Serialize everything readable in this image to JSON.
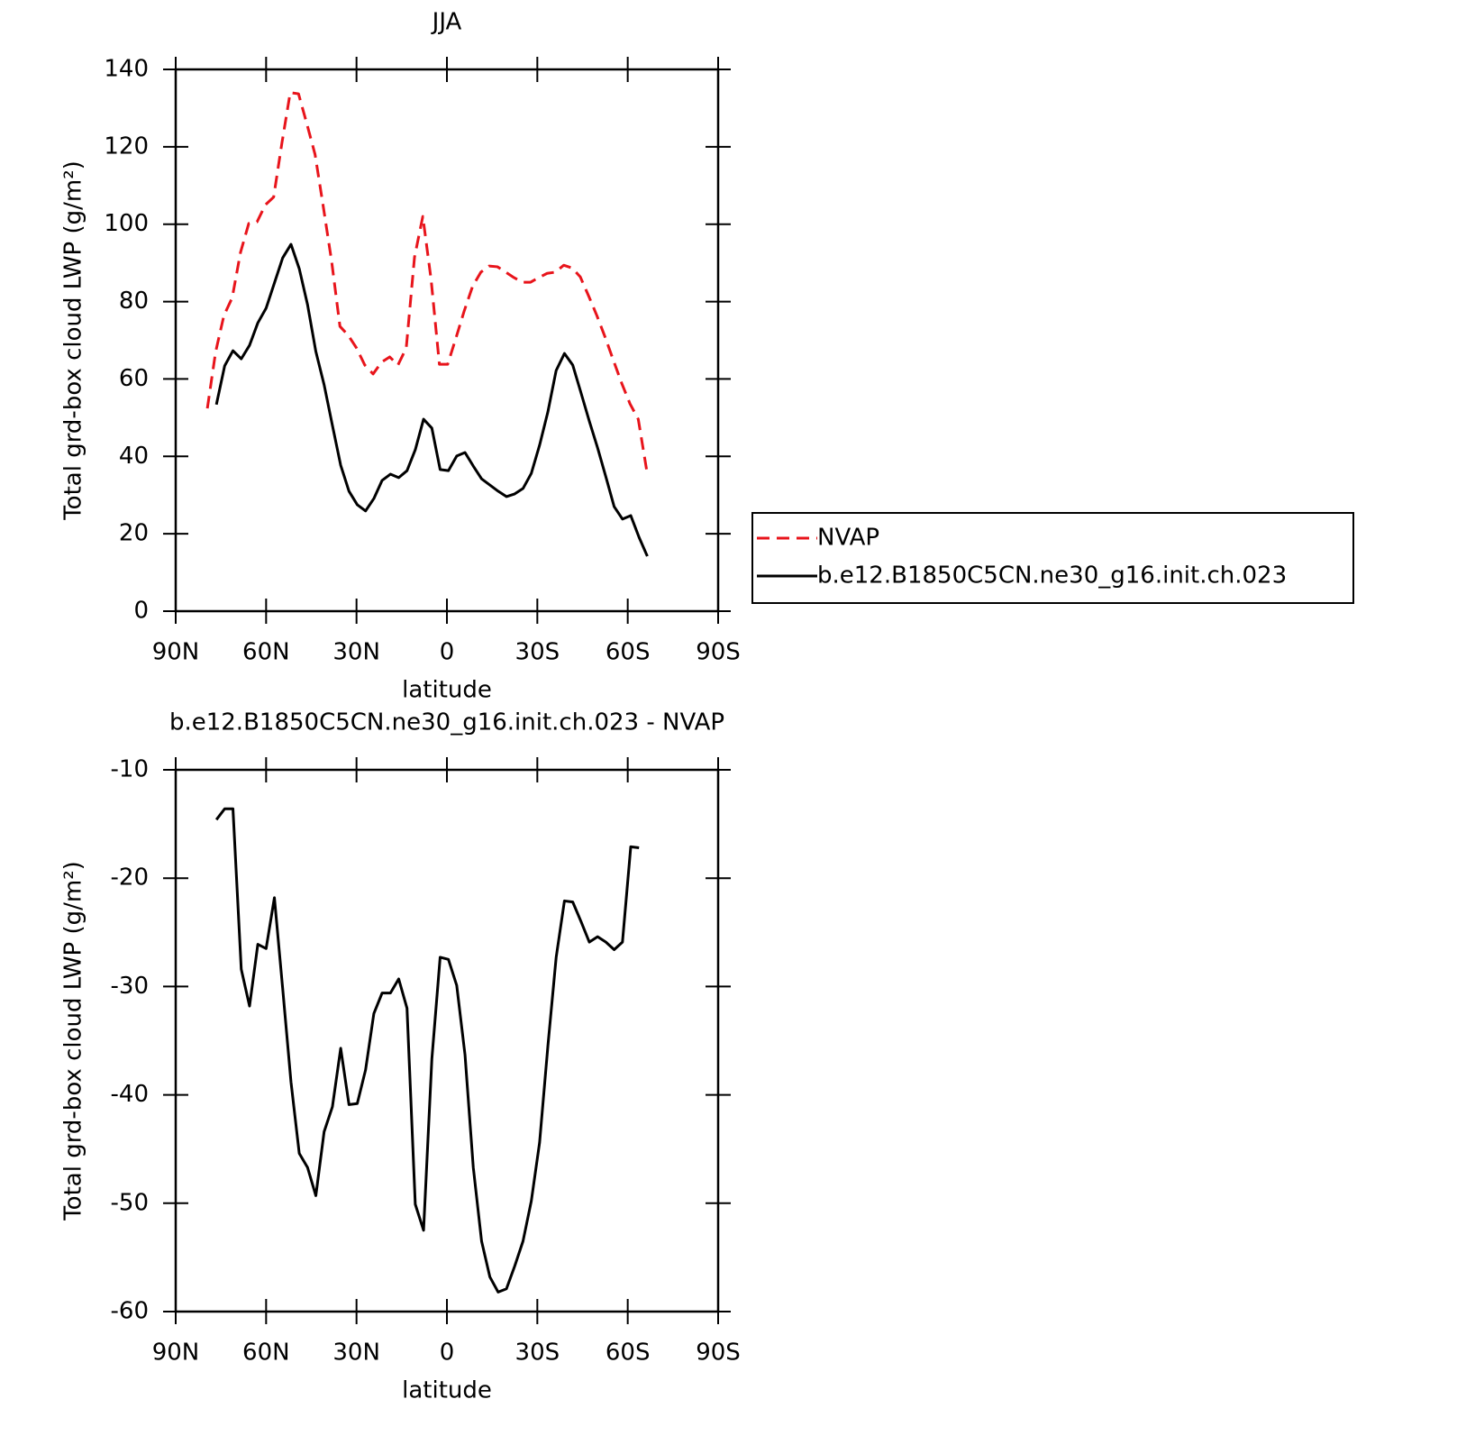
{
  "chart_data": [
    {
      "type": "line",
      "title": "JJA",
      "xlabel": "latitude",
      "ylabel": "Total grd-box cloud LWP (g/m²)",
      "xlim": [
        90,
        -90
      ],
      "xticks": [
        {
          "value": 90,
          "label": "90N"
        },
        {
          "value": 60,
          "label": "60N"
        },
        {
          "value": 30,
          "label": "30N"
        },
        0,
        {
          "value": -30,
          "label": "30S"
        },
        {
          "value": -60,
          "label": "60S"
        },
        {
          "value": -90,
          "label": "90S"
        }
      ],
      "ylim": [
        0,
        140
      ],
      "yticks": [
        0,
        20,
        40,
        60,
        80,
        100,
        120,
        140
      ],
      "legend": "right",
      "series": [
        {
          "name": "NVAP",
          "color": "#e8141b",
          "linestyle": "dashed",
          "x": [
            79.5,
            76.75,
            74,
            71.25,
            68.5,
            65.75,
            63,
            60.25,
            57.5,
            54.75,
            52,
            49.25,
            46.5,
            43.75,
            41,
            38.25,
            35.5,
            32.75,
            30,
            27.25,
            24.5,
            21.75,
            19,
            16.25,
            13.5,
            10.75,
            8,
            5.25,
            2.5,
            -0.25,
            -3,
            -5.75,
            -8.5,
            -11.25,
            -14,
            -16.75,
            -19.5,
            -22.25,
            -25,
            -27.75,
            -30.5,
            -33.25,
            -36,
            -38.75,
            -41.5,
            -44.25,
            -47,
            -49.75,
            -52.5,
            -55.25,
            -58,
            -60.75,
            -63.5,
            -66.25
          ],
          "values": [
            52.4,
            67,
            76.4,
            81,
            92.7,
            100.2,
            100.6,
            105,
            107,
            121,
            134,
            133.7,
            126,
            118,
            104.4,
            90.4,
            73.6,
            71.3,
            68,
            63.6,
            61.3,
            64.3,
            65.7,
            63.6,
            68,
            91.5,
            102,
            85.7,
            63.8,
            63.8,
            70.6,
            77.6,
            83.9,
            87.6,
            89.2,
            89,
            87.6,
            86.2,
            85,
            85,
            86.2,
            87.3,
            87.6,
            89.4,
            88.7,
            86.4,
            81.5,
            76.4,
            70.8,
            64.8,
            58.9,
            53.6,
            49.6,
            36.6
          ]
        },
        {
          "name": "b.e12.B1850C5CN.ne30_g16.init.ch.023",
          "color": "#000000",
          "linestyle": "solid",
          "x": [
            76.5,
            73.75,
            71,
            68.25,
            65.5,
            62.75,
            60,
            57.25,
            54.5,
            51.75,
            49,
            46.25,
            43.5,
            40.75,
            38,
            35.25,
            32.5,
            29.75,
            27,
            24.25,
            21.5,
            18.75,
            16,
            13.25,
            10.5,
            7.75,
            5,
            2.25,
            -0.5,
            -3.25,
            -6,
            -8.75,
            -11.5,
            -14.25,
            -17,
            -19.75,
            -22.5,
            -25.25,
            -28,
            -30.75,
            -33.5,
            -36.25,
            -39,
            -41.75,
            -44.5,
            -47.25,
            -50,
            -52.75,
            -55.5,
            -58.25,
            -61,
            -63.75,
            -66.5
          ],
          "values": [
            53.4,
            63.4,
            67.3,
            65.2,
            68.7,
            74.5,
            78.3,
            84.8,
            91.3,
            94.8,
            88.5,
            79.2,
            67.1,
            58.5,
            48,
            37.7,
            31,
            27.5,
            25.9,
            29.1,
            33.8,
            35.4,
            34.5,
            36.3,
            41.7,
            49.6,
            47.3,
            36.6,
            36.3,
            40.1,
            41,
            37.5,
            34.2,
            32.6,
            31,
            29.6,
            30.3,
            31.7,
            35.6,
            42.9,
            51.5,
            62.2,
            66.6,
            63.6,
            56.4,
            49.1,
            42.2,
            34.7,
            27,
            23.8,
            24.7,
            19.1,
            14.2
          ]
        }
      ]
    },
    {
      "type": "line",
      "title": "b.e12.B1850C5CN.ne30_g16.init.ch.023 - NVAP",
      "xlabel": "latitude",
      "ylabel": "Total grd-box cloud LWP (g/m²)",
      "xlim": [
        90,
        -90
      ],
      "xticks": [
        {
          "value": 90,
          "label": "90N"
        },
        {
          "value": 60,
          "label": "60N"
        },
        {
          "value": 30,
          "label": "30N"
        },
        0,
        {
          "value": -30,
          "label": "30S"
        },
        {
          "value": -60,
          "label": "60S"
        },
        {
          "value": -90,
          "label": "90S"
        }
      ],
      "ylim": [
        -60,
        -10
      ],
      "yticks": [
        -60,
        -50,
        -40,
        -30,
        -20,
        -10
      ],
      "series": [
        {
          "color": "#000000",
          "linestyle": "solid",
          "x": [
            76.5,
            73.75,
            71,
            68.25,
            65.5,
            62.75,
            60,
            57.25,
            54.5,
            51.75,
            49,
            46.25,
            43.5,
            40.75,
            38,
            35.25,
            32.5,
            29.75,
            27,
            24.25,
            21.5,
            18.75,
            16,
            13.25,
            10.5,
            7.75,
            5,
            2.25,
            -0.5,
            -3.25,
            -6,
            -8.75,
            -11.5,
            -14.25,
            -17,
            -19.75,
            -22.5,
            -25.25,
            -28,
            -30.75,
            -33.5,
            -36.25,
            -39,
            -41.75,
            -44.5,
            -47.25,
            -50,
            -52.75,
            -55.5,
            -58.25,
            -61,
            -63.75
          ],
          "values": [
            -14.6,
            -13.6,
            -13.6,
            -28.4,
            -31.8,
            -26.1,
            -26.5,
            -21.8,
            -30.2,
            -38.8,
            -45.4,
            -46.7,
            -49.3,
            -43.4,
            -41.1,
            -35.7,
            -40.9,
            -40.8,
            -37.7,
            -32.5,
            -30.6,
            -30.6,
            -29.3,
            -32,
            -50.1,
            -52.5,
            -36.7,
            -27.3,
            -27.5,
            -29.9,
            -36.3,
            -46.7,
            -53.5,
            -56.8,
            -58.2,
            -57.9,
            -55.8,
            -53.5,
            -49.8,
            -44.4,
            -35.5,
            -27.3,
            -22.1,
            -22.2,
            -24,
            -25.9,
            -25.4,
            -25.9,
            -26.6,
            -25.9,
            -17.1,
            -17.2
          ]
        }
      ]
    }
  ]
}
